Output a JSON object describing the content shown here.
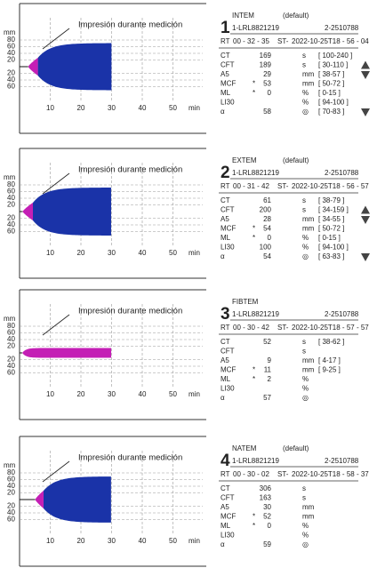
{
  "panels": [
    {
      "number": "1",
      "test": "INTEM",
      "mode": "(default)",
      "sample": "1-LRL8821219",
      "device": "2-2510788",
      "rt_label": "RT",
      "rt": "00 - 32 - 35",
      "st_label": "ST-",
      "st": "2022-10-25T18 - 56 - 04",
      "graph": {
        "caption": "Impresión durante medición",
        "y_unit": "mm",
        "y_labels": [
          "80",
          "60",
          "40",
          "20",
          "20",
          "40",
          "60"
        ],
        "x_labels": [
          "10",
          "20",
          "30",
          "40",
          "50"
        ],
        "x_unit": "min"
      },
      "rows": [
        {
          "name": "CT",
          "value": "169",
          "unit": "s",
          "range": "[ 100-240 ]"
        },
        {
          "name": "CFT",
          "value": "189",
          "unit": "s",
          "range": "[ 30-110 ]"
        },
        {
          "name": "A5",
          "value": "29",
          "unit": "mm",
          "range": "[ 38-57 ]"
        },
        {
          "name": "MCF",
          "flag": "*",
          "value": "53",
          "unit": "mm",
          "range": "[ 50-72 ]"
        },
        {
          "name": "ML",
          "flag": "*",
          "value": "0",
          "unit": "%",
          "range": "[ 0-15 ]"
        },
        {
          "name": "LI30",
          "unit": "%",
          "range": "[ 94-100 ]"
        },
        {
          "name": "α",
          "value": "58",
          "unit": "◎",
          "range": "[ 70-83 ]"
        }
      ]
    },
    {
      "number": "2",
      "test": "EXTEM",
      "mode": "(default)",
      "sample": "1-LRL8821219",
      "device": "2-2510788",
      "rt_label": "RT",
      "rt": "00 - 31 - 42",
      "st_label": "ST-",
      "st": "2022-10-25T18 - 56 - 57",
      "graph": {
        "caption": "Impresión durante medición",
        "y_unit": "mm",
        "y_labels": [
          "80",
          "60",
          "40",
          "20",
          "20",
          "40",
          "60"
        ],
        "x_labels": [
          "10",
          "20",
          "30",
          "40",
          "50"
        ],
        "x_unit": "min"
      },
      "rows": [
        {
          "name": "CT",
          "value": "61",
          "unit": "s",
          "range": "[ 38-79 ]"
        },
        {
          "name": "CFT",
          "value": "200",
          "unit": "s",
          "range": "[ 34-159 ]"
        },
        {
          "name": "A5",
          "value": "28",
          "unit": "mm",
          "range": "[ 34-55 ]"
        },
        {
          "name": "MCF",
          "flag": "*",
          "value": "54",
          "unit": "mm",
          "range": "[ 50-72 ]"
        },
        {
          "name": "ML",
          "flag": "*",
          "value": "0",
          "unit": "%",
          "range": "[ 0-15 ]"
        },
        {
          "name": "LI30",
          "value": "100",
          "unit": "%",
          "range": "[ 94-100 ]"
        },
        {
          "name": "α",
          "value": "54",
          "unit": "◎",
          "range": "[ 63-83 ]"
        }
      ]
    },
    {
      "number": "3",
      "test": "FIBTEM",
      "sample": "1-LRL8821219",
      "device": "2-2510788",
      "rt_label": "RT",
      "rt": "00 - 30 - 42",
      "st_label": "ST-",
      "st": "2022-10-25T18 - 57 - 57",
      "graph": {
        "caption": "Impresión durante medición",
        "y_unit": "mm",
        "y_labels": [
          "80",
          "60",
          "40",
          "20",
          "20",
          "40",
          "60"
        ],
        "x_labels": [
          "10",
          "20",
          "30",
          "40",
          "50"
        ],
        "x_unit": "min"
      },
      "rows": [
        {
          "name": "CT",
          "value": "52",
          "unit": "s",
          "range": "[ 38-62 ]"
        },
        {
          "name": "CFT",
          "unit": "s"
        },
        {
          "name": "A5",
          "value": "9",
          "unit": "mm",
          "range": "[ 4-17 ]"
        },
        {
          "name": "MCF",
          "flag": "*",
          "value": "11",
          "unit": "mm",
          "range": "[ 9-25 ]"
        },
        {
          "name": "ML",
          "flag": "*",
          "value": "2",
          "unit": "%"
        },
        {
          "name": "LI30",
          "unit": "%"
        },
        {
          "name": "α",
          "value": "57",
          "unit": "◎"
        }
      ]
    },
    {
      "number": "4",
      "test": "NATEM",
      "mode": "(default)",
      "sample": "1-LRL8821219",
      "device": "2-2510788",
      "rt_label": "RT",
      "rt": "00 - 30 - 02",
      "st_label": "ST-",
      "st": "2022-10-25T18 - 58 - 37",
      "graph": {
        "caption": "Impresión durante medición",
        "y_unit": "mm",
        "y_labels": [
          "80",
          "60",
          "40",
          "20",
          "20",
          "40",
          "60"
        ],
        "x_labels": [
          "10",
          "20",
          "30",
          "40",
          "50"
        ],
        "x_unit": "min"
      },
      "rows": [
        {
          "name": "CT",
          "value": "306",
          "unit": "s"
        },
        {
          "name": "CFT",
          "value": "163",
          "unit": "s"
        },
        {
          "name": "A5",
          "value": "30",
          "unit": "mm"
        },
        {
          "name": "MCF",
          "flag": "*",
          "value": "52",
          "unit": "mm"
        },
        {
          "name": "ML",
          "flag": "*",
          "value": "0",
          "unit": "%"
        },
        {
          "name": "LI30",
          "unit": "%"
        },
        {
          "name": "α",
          "value": "59",
          "unit": "◎"
        }
      ]
    }
  ]
}
